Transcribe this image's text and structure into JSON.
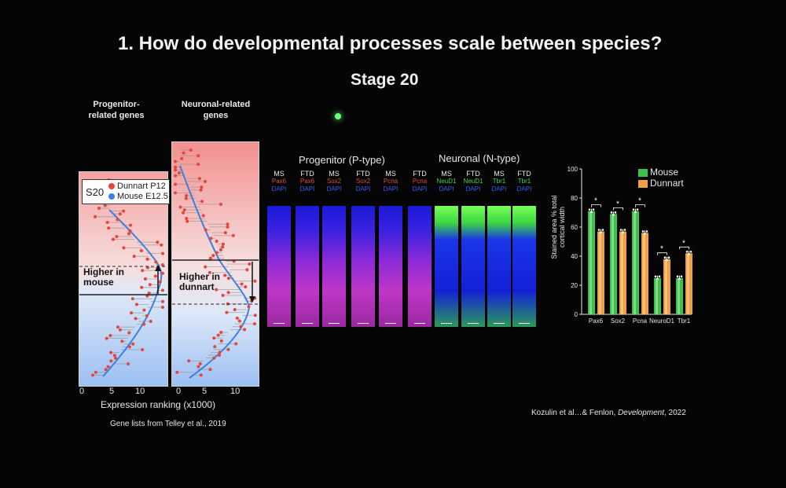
{
  "slide": {
    "title": "1. How do developmental processes scale between species?",
    "subtitle": "Stage 20",
    "citation_prefix": "Kozulin et al…& Fenlon, ",
    "citation_journal": "Development",
    "citation_suffix": ", 2022",
    "gene_list_credit": "Gene lists from Telley et al., 2019"
  },
  "ranking_plot": {
    "left_header": "Progenitor-\nrelated genes",
    "right_header": "Neuronal-related\ngenes",
    "legend_stage": "S20",
    "legend_items": [
      {
        "label": "Dunnart P12",
        "color": "#e5453a"
      },
      {
        "label": "Mouse E12.5",
        "color": "#3b7fe0"
      }
    ],
    "left_annotation": "Higher in\nmouse",
    "right_annotation": "Higher in\ndunnart",
    "x_ticks": [
      "0",
      "5",
      "10"
    ],
    "x_label": "Expression ranking (x1000)"
  },
  "stains": {
    "progenitor_header": "Progenitor (P-type)",
    "neuronal_header": "Neuronal (N-type)",
    "columns": [
      {
        "species": "MS",
        "marker": "Pax6",
        "marker_color": "#e04848",
        "dapi": "DAPI",
        "type": "p"
      },
      {
        "species": "FTD",
        "marker": "Pax6",
        "marker_color": "#e04848",
        "dapi": "DAPI",
        "type": "p"
      },
      {
        "species": "MS",
        "marker": "Sox2",
        "marker_color": "#e04848",
        "dapi": "DAPI",
        "type": "p"
      },
      {
        "species": "FTD",
        "marker": "Sox2",
        "marker_color": "#e04848",
        "dapi": "DAPI",
        "type": "p"
      },
      {
        "species": "MS",
        "marker": "Pcna",
        "marker_color": "#e04848",
        "dapi": "DAPI",
        "type": "p"
      },
      {
        "species": "FTD",
        "marker": "Pcna",
        "marker_color": "#e04848",
        "dapi": "DAPI",
        "type": "p"
      },
      {
        "species": "MS",
        "marker": "NeuD1",
        "marker_color": "#3fd64a",
        "dapi": "DAPI",
        "type": "n"
      },
      {
        "species": "FTD",
        "marker": "NeuD1",
        "marker_color": "#3fd64a",
        "dapi": "DAPI",
        "type": "n"
      },
      {
        "species": "MS",
        "marker": "Tbr1",
        "marker_color": "#3fd64a",
        "dapi": "DAPI",
        "type": "n"
      },
      {
        "species": "FTD",
        "marker": "Tbr1",
        "marker_color": "#3fd64a",
        "dapi": "DAPI",
        "type": "n"
      }
    ]
  },
  "chart_data": {
    "type": "bar",
    "ylabel": "Stained area % total\ncortical width",
    "ylim": [
      0,
      100
    ],
    "y_ticks": [
      "0",
      "20",
      "40",
      "60",
      "80",
      "100"
    ],
    "categories": [
      "Pax6",
      "Sox2",
      "Pcna",
      "NeuroD1",
      "Tbr1"
    ],
    "series": [
      {
        "name": "Mouse",
        "color": "#3cc24a",
        "values": [
          71,
          69,
          71,
          25,
          25
        ]
      },
      {
        "name": "Dunnart",
        "color": "#f0a040",
        "values": [
          57,
          57,
          56,
          38,
          42
        ]
      }
    ],
    "significance": [
      "*",
      "*",
      "*",
      "*",
      "*"
    ],
    "legend_position": "top-right"
  }
}
